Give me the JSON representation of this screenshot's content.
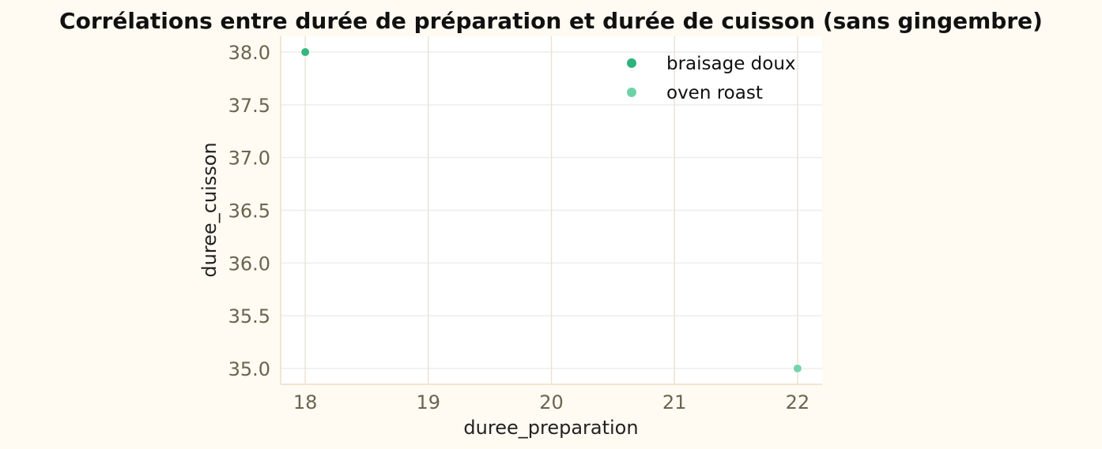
{
  "chart_data": {
    "type": "scatter",
    "title": "Corrélations entre durée de préparation et durée de cuisson (sans gingembre)",
    "xlabel": "duree_preparation",
    "ylabel": "duree_cuisson",
    "xlim": [
      17.8,
      22.2
    ],
    "ylim": [
      34.85,
      38.15
    ],
    "x_ticks": [
      18,
      19,
      20,
      21,
      22
    ],
    "y_ticks": [
      35.0,
      35.5,
      36.0,
      36.5,
      37.0,
      37.5,
      38.0
    ],
    "x_tick_labels": [
      "18",
      "19",
      "20",
      "21",
      "22"
    ],
    "y_tick_labels": [
      "35.0",
      "35.5",
      "36.0",
      "36.5",
      "37.0",
      "37.5",
      "38.0"
    ],
    "grid": true,
    "legend_position": "top-right",
    "series": [
      {
        "name": "braisage doux",
        "color": "#2db37b",
        "points": [
          {
            "x": 18,
            "y": 38.0
          }
        ]
      },
      {
        "name": "oven roast",
        "color": "#6fd2a6",
        "points": [
          {
            "x": 22,
            "y": 35.0
          }
        ]
      }
    ]
  },
  "colors": {
    "background": "#fffaf2",
    "plot_area": "#ffffff",
    "grid_vertical": "#ece3d3",
    "grid_horizontal": "#efeeec",
    "axis_spine": "#f0e6d2"
  }
}
